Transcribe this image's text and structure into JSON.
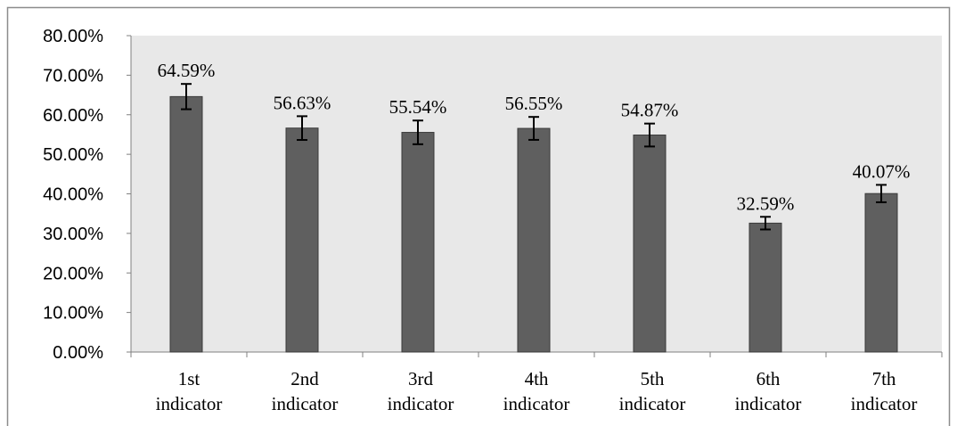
{
  "chart_data": {
    "type": "bar",
    "categories": [
      [
        "1st",
        "indicator"
      ],
      [
        "2nd",
        "indicator"
      ],
      [
        "3rd",
        "indicator"
      ],
      [
        "4th",
        "indicator"
      ],
      [
        "5th",
        "indicator"
      ],
      [
        "6th",
        "indicator"
      ],
      [
        "7th",
        "indicator"
      ]
    ],
    "values": [
      64.59,
      56.63,
      55.54,
      56.55,
      54.87,
      32.59,
      40.07
    ],
    "data_labels": [
      "64.59%",
      "56.63%",
      "55.54%",
      "56.55%",
      "54.87%",
      "32.59%",
      "40.07%"
    ],
    "error": [
      3.2,
      3.0,
      3.0,
      2.9,
      2.9,
      1.6,
      2.2
    ],
    "ylim": [
      0,
      80
    ],
    "yticks": [
      "0.00%",
      "10.00%",
      "20.00%",
      "30.00%",
      "40.00%",
      "50.00%",
      "60.00%",
      "70.00%",
      "80.00%"
    ],
    "grid": false,
    "legend": "none",
    "colors": {
      "bar_fill": "#5f5f5f",
      "bar_stroke": "#3a3a3a",
      "plot_background": "#e8e8e8",
      "error_bar": "#000000",
      "frame": "#8c8c8c"
    }
  }
}
